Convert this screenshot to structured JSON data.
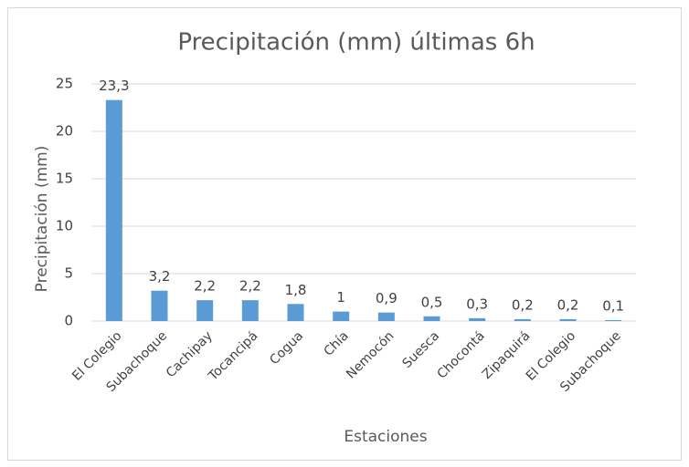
{
  "chart_data": {
    "type": "bar",
    "title": "Precipitación (mm) últimas 6h",
    "x_label": "Estaciones",
    "y_label": "Precipitación (mm)",
    "categories": [
      "El Colegio",
      "Subachoque",
      "Cachipay",
      "Tocancipá",
      "Cogua",
      "Chía",
      "Nemocón",
      "Suesca",
      "Chocontá",
      "Zipaquirá",
      "El Colegio",
      "Subachoque"
    ],
    "values": [
      23.3,
      3.2,
      2.2,
      2.2,
      1.8,
      1,
      0.9,
      0.5,
      0.3,
      0.2,
      0.2,
      0.1
    ],
    "value_labels": [
      "23,3",
      "3,2",
      "2,2",
      "2,2",
      "1,8",
      "1",
      "0,9",
      "0,5",
      "0,3",
      "0,2",
      "0,2",
      "0,1"
    ],
    "color": "#5b9bd5",
    "ylim": [
      0,
      25
    ],
    "yticks": [
      0,
      5,
      10,
      15,
      20,
      25
    ],
    "grid": true
  }
}
